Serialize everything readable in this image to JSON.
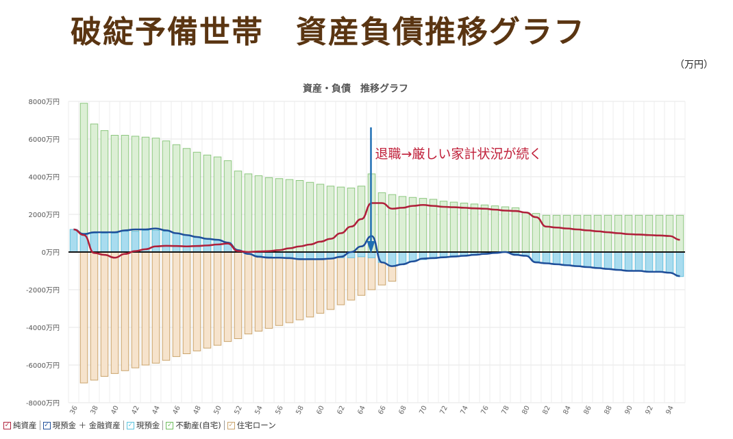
{
  "header": {
    "title": "破綻予備世帯　資産負債推移グラフ",
    "unit": "（万円）"
  },
  "annotation": {
    "text": "退職→厳しい家計状況が続く",
    "arrow_age": 65
  },
  "legend": [
    {
      "label": "純資産",
      "color": "#b0203a"
    },
    {
      "label": "現預金 ＋ 金融資産",
      "color": "#1f4f9a"
    },
    {
      "label": "現預金",
      "color": "#5bc4de"
    },
    {
      "label": "不動産(自宅)",
      "color": "#6dbd5c"
    },
    {
      "label": "住宅ローン",
      "color": "#c9a36b"
    }
  ],
  "chart_data": {
    "type": "bar",
    "title": "資産・負債　推移グラフ",
    "xlabel": "",
    "ylabel": "",
    "ylim": [
      -8000,
      8000
    ],
    "y_ticks": [
      8000,
      6000,
      4000,
      2000,
      0,
      -2000,
      -4000,
      -6000,
      -8000
    ],
    "y_tick_labels": [
      "8000万円",
      "6000万円",
      "4000万円",
      "2000万円",
      "0万円",
      "-2000万円",
      "-4000万円",
      "-6000万円",
      "-8000万円"
    ],
    "x_tick_labels": [
      "36",
      "38",
      "40",
      "42",
      "44",
      "46",
      "48",
      "50",
      "52",
      "54",
      "56",
      "58",
      "60",
      "62",
      "64",
      "66",
      "68",
      "70",
      "72",
      "74",
      "76",
      "78",
      "80",
      "82",
      "84",
      "86",
      "88",
      "90",
      "92",
      "94"
    ],
    "ages": [
      36,
      37,
      38,
      39,
      40,
      41,
      42,
      43,
      44,
      45,
      46,
      47,
      48,
      49,
      50,
      51,
      52,
      53,
      54,
      55,
      56,
      57,
      58,
      59,
      60,
      61,
      62,
      63,
      64,
      65,
      66,
      67,
      68,
      69,
      70,
      71,
      72,
      73,
      74,
      75,
      76,
      77,
      78,
      79,
      80,
      81,
      82,
      83,
      84,
      85,
      86,
      87,
      88,
      89,
      90,
      91,
      92,
      93,
      94,
      95
    ],
    "series": [
      {
        "name": "不動産(自宅)",
        "kind": "bar",
        "values": [
          0,
          7900,
          6800,
          6450,
          6200,
          6200,
          6150,
          6100,
          6050,
          5900,
          5700,
          5500,
          5300,
          5150,
          5050,
          4850,
          4300,
          4150,
          4050,
          3950,
          3900,
          3850,
          3800,
          3700,
          3600,
          3500,
          3450,
          3400,
          3500,
          4150,
          3150,
          3050,
          2950,
          2900,
          2850,
          2800,
          2700,
          2650,
          2600,
          2550,
          2500,
          2450,
          2400,
          2350,
          2100,
          2050,
          1950,
          1950,
          1950,
          1950,
          1950,
          1950,
          1950,
          1950,
          1950,
          1950,
          1950,
          1950,
          1950,
          1950
        ]
      },
      {
        "name": "住宅ローン",
        "kind": "bar",
        "values": [
          0,
          -6950,
          -6800,
          -6600,
          -6450,
          -6300,
          -6150,
          -6000,
          -5900,
          -5750,
          -5550,
          -5400,
          -5250,
          -5100,
          -4950,
          -4750,
          -4600,
          -4350,
          -4200,
          -4050,
          -3900,
          -3750,
          -3600,
          -3450,
          -3250,
          -3050,
          -2800,
          -2550,
          -2300,
          -2000,
          -1750,
          -1550,
          0,
          0,
          0,
          0,
          0,
          0,
          0,
          0,
          0,
          0,
          0,
          0,
          0,
          0,
          0,
          0,
          0,
          0,
          0,
          0,
          0,
          0,
          0,
          0,
          0,
          0,
          0,
          0
        ]
      },
      {
        "name": "現預金",
        "kind": "bar",
        "values": [
          1200,
          1000,
          1000,
          1000,
          1000,
          1100,
          1100,
          1150,
          1150,
          1100,
          1000,
          900,
          800,
          700,
          650,
          500,
          100,
          -100,
          -200,
          -250,
          -300,
          -300,
          -350,
          -350,
          -350,
          -350,
          -300,
          -300,
          -250,
          -300,
          -550,
          -750,
          -650,
          -500,
          -400,
          -350,
          -300,
          -250,
          -200,
          -150,
          -100,
          -50,
          0,
          -100,
          -200,
          -500,
          -600,
          -650,
          -700,
          -750,
          -800,
          -850,
          -900,
          -950,
          -1000,
          -1000,
          -1050,
          -1050,
          -1100,
          -1300
        ]
      },
      {
        "name": "現預金 ＋ 金融資産",
        "kind": "line",
        "values": [
          1200,
          950,
          1050,
          1050,
          1050,
          1150,
          1200,
          1200,
          1250,
          1150,
          1000,
          900,
          800,
          700,
          650,
          500,
          100,
          -100,
          -250,
          -300,
          -300,
          -320,
          -380,
          -380,
          -380,
          -350,
          -250,
          0,
          300,
          850,
          -550,
          -750,
          -650,
          -500,
          -350,
          -320,
          -280,
          -240,
          -200,
          -150,
          -100,
          -50,
          0,
          -150,
          -200,
          -550,
          -600,
          -650,
          -700,
          -750,
          -800,
          -850,
          -900,
          -950,
          -1000,
          -1000,
          -1050,
          -1050,
          -1100,
          -1280
        ]
      },
      {
        "name": "純資産",
        "kind": "line",
        "values": [
          1200,
          900,
          -50,
          -150,
          -300,
          -100,
          50,
          150,
          300,
          330,
          320,
          300,
          320,
          350,
          400,
          450,
          50,
          0,
          30,
          50,
          100,
          200,
          300,
          400,
          550,
          700,
          1000,
          1350,
          1750,
          2600,
          2600,
          2300,
          2350,
          2450,
          2500,
          2450,
          2400,
          2380,
          2350,
          2320,
          2300,
          2250,
          2200,
          2180,
          2100,
          1850,
          1350,
          1300,
          1250,
          1200,
          1150,
          1100,
          1050,
          1000,
          950,
          930,
          900,
          880,
          850,
          650
        ]
      }
    ]
  }
}
